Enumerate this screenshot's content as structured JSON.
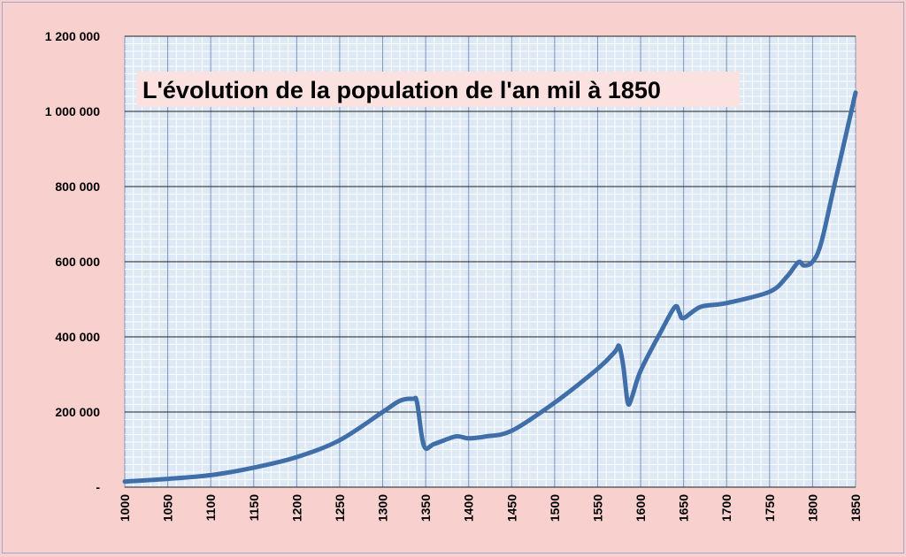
{
  "chart_data": {
    "type": "line",
    "title": "L'évolution de la population de  l'an mil à 1850",
    "xlabel": "",
    "ylabel": "",
    "xlim": [
      1000,
      1850
    ],
    "ylim": [
      0,
      1200000
    ],
    "grid": true,
    "y_ticks": [
      {
        "value": 0,
        "label": "-"
      },
      {
        "value": 200000,
        "label": "200 000"
      },
      {
        "value": 400000,
        "label": "400 000"
      },
      {
        "value": 600000,
        "label": "600 000"
      },
      {
        "value": 800000,
        "label": "800 000"
      },
      {
        "value": 1000000,
        "label": "1 000 000"
      },
      {
        "value": 1200000,
        "label": "1 200 000"
      }
    ],
    "x_ticks": [
      {
        "value": 1000,
        "label": "1000"
      },
      {
        "value": 1050,
        "label": "1050"
      },
      {
        "value": 1100,
        "label": "1100"
      },
      {
        "value": 1150,
        "label": "1150"
      },
      {
        "value": 1200,
        "label": "1200"
      },
      {
        "value": 1250,
        "label": "1250"
      },
      {
        "value": 1300,
        "label": "1300"
      },
      {
        "value": 1350,
        "label": "1350"
      },
      {
        "value": 1400,
        "label": "1400"
      },
      {
        "value": 1450,
        "label": "1450"
      },
      {
        "value": 1500,
        "label": "1500"
      },
      {
        "value": 1550,
        "label": "1550"
      },
      {
        "value": 1600,
        "label": "1600"
      },
      {
        "value": 1650,
        "label": "1650"
      },
      {
        "value": 1700,
        "label": "1700"
      },
      {
        "value": 1750,
        "label": "1750"
      },
      {
        "value": 1800,
        "label": "1800"
      },
      {
        "value": 1850,
        "label": "1850"
      }
    ],
    "series": [
      {
        "color": "#3f6ea8",
        "x": [
          1000,
          1050,
          1100,
          1150,
          1200,
          1250,
          1300,
          1320,
          1335,
          1340,
          1348,
          1360,
          1385,
          1400,
          1420,
          1450,
          1500,
          1550,
          1570,
          1575,
          1580,
          1585,
          1590,
          1600,
          1625,
          1640,
          1645,
          1650,
          1670,
          1700,
          1750,
          1770,
          1780,
          1785,
          1790,
          1800,
          1810,
          1825,
          1850
        ],
        "y": [
          15000,
          22000,
          32000,
          52000,
          80000,
          125000,
          200000,
          230000,
          235000,
          225000,
          110000,
          115000,
          135000,
          130000,
          135000,
          150000,
          225000,
          315000,
          360000,
          375000,
          320000,
          225000,
          240000,
          310000,
          420000,
          480000,
          465000,
          450000,
          480000,
          490000,
          520000,
          560000,
          590000,
          600000,
          590000,
          600000,
          650000,
          800000,
          1050000
        ]
      }
    ]
  }
}
